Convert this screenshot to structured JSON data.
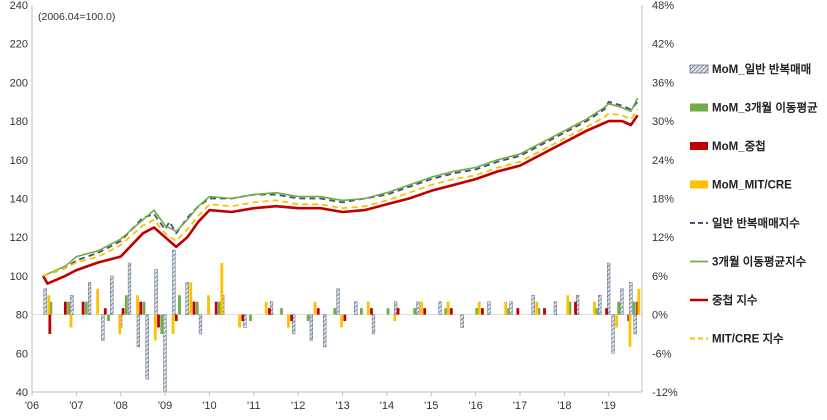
{
  "chart_data": {
    "type": "line",
    "subtype": "combo line + monthly change bars",
    "title": "",
    "note": "(2006.04=100.0)",
    "xlabel": "",
    "ylabel": "",
    "y_left": {
      "ticks": [
        40,
        60,
        80,
        100,
        120,
        140,
        160,
        180,
        200,
        220,
        240
      ],
      "ylim": [
        40,
        240
      ]
    },
    "y_right": {
      "ticks": [
        "-12%",
        "-6%",
        "0%",
        "6%",
        "12%",
        "18%",
        "24%",
        "30%",
        "36%",
        "42%",
        "48%"
      ],
      "ylim": [
        -12,
        48
      ]
    },
    "x_ticks": [
      {
        "label": "'06",
        "year": 2006
      },
      {
        "label": "'07",
        "year": 2007
      },
      {
        "label": "'08",
        "year": 2008
      },
      {
        "label": "'09",
        "year": 2009
      },
      {
        "label": "'10",
        "year": 2010
      },
      {
        "label": "'11",
        "year": 2011
      },
      {
        "label": "'12",
        "year": 2012
      },
      {
        "label": "'13",
        "year": 2013
      },
      {
        "label": "'14",
        "year": 2014
      },
      {
        "label": "'15",
        "year": 2015
      },
      {
        "label": "'16",
        "year": 2016
      },
      {
        "label": "'17",
        "year": 2017
      },
      {
        "label": "'18",
        "year": 2018
      },
      {
        "label": "'19",
        "year": 2019
      }
    ],
    "x_range": [
      2006.0,
      2019.75
    ],
    "legend_position": "right",
    "legend": [
      {
        "label": "MoM_일반 반복매매",
        "kind": "bar-hatched",
        "color": "#8497b0"
      },
      {
        "label": "MoM_3개월 이동평균",
        "kind": "bar",
        "color": "#70ad47"
      },
      {
        "label": "MoM_중첩",
        "kind": "bar",
        "color": "#c00000"
      },
      {
        "label": "MoM_MIT/CRE",
        "kind": "bar",
        "color": "#ffc000"
      },
      {
        "label": "일반 반복매매지수",
        "kind": "line-dash",
        "color": "#44546a"
      },
      {
        "label": "3개월 이동평균지수",
        "kind": "line",
        "color": "#70ad47"
      },
      {
        "label": "중첩 지수",
        "kind": "line-thick",
        "color": "#c00000"
      },
      {
        "label": "MIT/CRE 지수",
        "kind": "line-dash",
        "color": "#ffc000"
      }
    ],
    "series": [
      {
        "name": "일반 반복매매지수",
        "role": "index",
        "points": [
          [
            2006.25,
            100
          ],
          [
            2006.75,
            104
          ],
          [
            2007.0,
            108
          ],
          [
            2007.5,
            112
          ],
          [
            2008.0,
            118
          ],
          [
            2008.5,
            130
          ],
          [
            2008.75,
            132
          ],
          [
            2009.0,
            124
          ],
          [
            2009.1,
            128
          ],
          [
            2009.25,
            122
          ],
          [
            2009.5,
            130
          ],
          [
            2009.75,
            136
          ],
          [
            2010.0,
            140
          ],
          [
            2010.5,
            140
          ],
          [
            2011.0,
            142
          ],
          [
            2011.5,
            142
          ],
          [
            2012.0,
            140
          ],
          [
            2012.5,
            140
          ],
          [
            2013.0,
            138
          ],
          [
            2013.5,
            140
          ],
          [
            2014.0,
            142
          ],
          [
            2014.5,
            146
          ],
          [
            2015.0,
            150
          ],
          [
            2015.5,
            153
          ],
          [
            2016.0,
            155
          ],
          [
            2016.5,
            159
          ],
          [
            2017.0,
            162
          ],
          [
            2017.5,
            168
          ],
          [
            2018.0,
            174
          ],
          [
            2018.5,
            180
          ],
          [
            2018.9,
            186
          ],
          [
            2019.0,
            190
          ],
          [
            2019.3,
            188
          ],
          [
            2019.5,
            186
          ],
          [
            2019.65,
            190
          ]
        ]
      },
      {
        "name": "3개월 이동평균지수",
        "role": "index",
        "points": [
          [
            2006.25,
            100
          ],
          [
            2006.75,
            105
          ],
          [
            2007.0,
            110
          ],
          [
            2007.5,
            113
          ],
          [
            2008.0,
            119
          ],
          [
            2008.5,
            129
          ],
          [
            2008.75,
            134
          ],
          [
            2009.0,
            126
          ],
          [
            2009.25,
            123
          ],
          [
            2009.5,
            129
          ],
          [
            2009.75,
            136
          ],
          [
            2010.0,
            141
          ],
          [
            2010.5,
            140
          ],
          [
            2011.0,
            142
          ],
          [
            2011.5,
            143
          ],
          [
            2012.0,
            141
          ],
          [
            2012.5,
            141
          ],
          [
            2013.0,
            139
          ],
          [
            2013.5,
            140
          ],
          [
            2014.0,
            143
          ],
          [
            2014.5,
            147
          ],
          [
            2015.0,
            151
          ],
          [
            2015.5,
            154
          ],
          [
            2016.0,
            156
          ],
          [
            2016.5,
            160
          ],
          [
            2017.0,
            163
          ],
          [
            2017.5,
            169
          ],
          [
            2018.0,
            175
          ],
          [
            2018.5,
            181
          ],
          [
            2018.9,
            187
          ],
          [
            2019.0,
            189
          ],
          [
            2019.3,
            187
          ],
          [
            2019.5,
            185
          ],
          [
            2019.65,
            192
          ]
        ]
      },
      {
        "name": "중첩 지수",
        "role": "index",
        "points": [
          [
            2006.25,
            100
          ],
          [
            2006.35,
            96
          ],
          [
            2006.75,
            100
          ],
          [
            2007.0,
            103
          ],
          [
            2007.5,
            107
          ],
          [
            2008.0,
            110
          ],
          [
            2008.5,
            122
          ],
          [
            2008.75,
            125
          ],
          [
            2009.0,
            120
          ],
          [
            2009.25,
            115
          ],
          [
            2009.5,
            120
          ],
          [
            2009.75,
            128
          ],
          [
            2010.0,
            134
          ],
          [
            2010.5,
            133
          ],
          [
            2011.0,
            135
          ],
          [
            2011.5,
            136
          ],
          [
            2012.0,
            135
          ],
          [
            2012.5,
            135
          ],
          [
            2013.0,
            133
          ],
          [
            2013.5,
            134
          ],
          [
            2014.0,
            137
          ],
          [
            2014.5,
            140
          ],
          [
            2015.0,
            144
          ],
          [
            2015.5,
            147
          ],
          [
            2016.0,
            150
          ],
          [
            2016.5,
            154
          ],
          [
            2017.0,
            157
          ],
          [
            2017.5,
            163
          ],
          [
            2018.0,
            169
          ],
          [
            2018.5,
            175
          ],
          [
            2018.9,
            179
          ],
          [
            2019.0,
            180
          ],
          [
            2019.3,
            180
          ],
          [
            2019.5,
            178
          ],
          [
            2019.65,
            183
          ]
        ]
      },
      {
        "name": "MIT/CRE 지수",
        "role": "index",
        "points": [
          [
            2006.25,
            100
          ],
          [
            2006.75,
            104
          ],
          [
            2007.0,
            107
          ],
          [
            2007.5,
            110
          ],
          [
            2008.0,
            116
          ],
          [
            2008.5,
            126
          ],
          [
            2008.75,
            129
          ],
          [
            2009.0,
            122
          ],
          [
            2009.25,
            118
          ],
          [
            2009.5,
            124
          ],
          [
            2009.75,
            131
          ],
          [
            2010.0,
            137
          ],
          [
            2010.5,
            136
          ],
          [
            2011.0,
            138
          ],
          [
            2011.5,
            139
          ],
          [
            2012.0,
            137
          ],
          [
            2012.5,
            137
          ],
          [
            2013.0,
            135
          ],
          [
            2013.5,
            136
          ],
          [
            2014.0,
            139
          ],
          [
            2014.5,
            143
          ],
          [
            2015.0,
            147
          ],
          [
            2015.5,
            150
          ],
          [
            2016.0,
            152
          ],
          [
            2016.5,
            156
          ],
          [
            2017.0,
            159
          ],
          [
            2017.5,
            165
          ],
          [
            2018.0,
            171
          ],
          [
            2018.5,
            177
          ],
          [
            2018.9,
            182
          ],
          [
            2019.0,
            184
          ],
          [
            2019.3,
            183
          ],
          [
            2019.5,
            181
          ],
          [
            2019.65,
            186
          ]
        ]
      },
      {
        "name": "MoM_일반 반복매매",
        "role": "mom_percent",
        "values_note": "monthly % change, right axis",
        "points": [
          [
            2006.3,
            4
          ],
          [
            2006.9,
            3
          ],
          [
            2007.3,
            5
          ],
          [
            2007.6,
            -4
          ],
          [
            2007.8,
            6
          ],
          [
            2008.0,
            -2
          ],
          [
            2008.2,
            8
          ],
          [
            2008.4,
            -5
          ],
          [
            2008.6,
            -10
          ],
          [
            2008.8,
            7
          ],
          [
            2009.0,
            -12
          ],
          [
            2009.2,
            10
          ],
          [
            2009.5,
            5
          ],
          [
            2009.8,
            -3
          ],
          [
            2010.3,
            3
          ],
          [
            2010.8,
            -2
          ],
          [
            2011.4,
            2
          ],
          [
            2011.9,
            -3
          ],
          [
            2012.3,
            -4
          ],
          [
            2012.6,
            -5
          ],
          [
            2012.9,
            4
          ],
          [
            2013.3,
            2
          ],
          [
            2013.7,
            -3
          ],
          [
            2014.2,
            2
          ],
          [
            2014.7,
            2
          ],
          [
            2015.2,
            2
          ],
          [
            2015.7,
            -2
          ],
          [
            2016.3,
            2
          ],
          [
            2016.8,
            2
          ],
          [
            2017.3,
            3
          ],
          [
            2017.8,
            2
          ],
          [
            2018.3,
            3
          ],
          [
            2018.8,
            3
          ],
          [
            2019.0,
            8
          ],
          [
            2019.1,
            -6
          ],
          [
            2019.3,
            4
          ],
          [
            2019.5,
            5
          ],
          [
            2019.6,
            -3
          ]
        ]
      },
      {
        "name": "MoM_3개월 이동평균",
        "role": "mom_percent",
        "points": [
          [
            2006.4,
            2
          ],
          [
            2006.8,
            2
          ],
          [
            2007.2,
            2
          ],
          [
            2007.7,
            -1
          ],
          [
            2008.1,
            3
          ],
          [
            2008.5,
            2
          ],
          [
            2008.9,
            -3
          ],
          [
            2009.3,
            3
          ],
          [
            2009.7,
            2
          ],
          [
            2010.2,
            2
          ],
          [
            2010.9,
            -1
          ],
          [
            2011.6,
            1
          ],
          [
            2012.2,
            -1
          ],
          [
            2012.8,
            1
          ],
          [
            2013.4,
            1
          ],
          [
            2014.0,
            1
          ],
          [
            2014.6,
            1
          ],
          [
            2015.3,
            1
          ],
          [
            2016.0,
            1
          ],
          [
            2016.7,
            1
          ],
          [
            2017.4,
            1
          ],
          [
            2018.1,
            2
          ],
          [
            2018.7,
            1
          ],
          [
            2019.2,
            2
          ],
          [
            2019.55,
            2
          ]
        ]
      },
      {
        "name": "MoM_중첩",
        "role": "mom_percent",
        "points": [
          [
            2006.35,
            -3
          ],
          [
            2006.7,
            2
          ],
          [
            2007.1,
            2
          ],
          [
            2007.6,
            1
          ],
          [
            2008.0,
            1
          ],
          [
            2008.4,
            2
          ],
          [
            2008.8,
            -2
          ],
          [
            2009.2,
            -1
          ],
          [
            2009.6,
            2
          ],
          [
            2010.1,
            2
          ],
          [
            2010.7,
            -1
          ],
          [
            2011.3,
            1
          ],
          [
            2011.8,
            -1
          ],
          [
            2012.4,
            1
          ],
          [
            2013.0,
            -1
          ],
          [
            2013.6,
            1
          ],
          [
            2014.2,
            1
          ],
          [
            2014.8,
            1
          ],
          [
            2015.4,
            1
          ],
          [
            2016.1,
            1
          ],
          [
            2016.9,
            1
          ],
          [
            2017.5,
            1
          ],
          [
            2018.2,
            2
          ],
          [
            2018.9,
            1
          ],
          [
            2019.4,
            -1
          ],
          [
            2019.6,
            2
          ]
        ]
      },
      {
        "name": "MoM_MIT/CRE",
        "role": "mom_percent",
        "points": [
          [
            2006.3,
            3
          ],
          [
            2006.8,
            -2
          ],
          [
            2007.4,
            4
          ],
          [
            2007.9,
            -3
          ],
          [
            2008.3,
            3
          ],
          [
            2008.7,
            -4
          ],
          [
            2009.1,
            -3
          ],
          [
            2009.5,
            5
          ],
          [
            2009.9,
            3
          ],
          [
            2010.2,
            8
          ],
          [
            2010.6,
            -2
          ],
          [
            2011.2,
            2
          ],
          [
            2011.7,
            -2
          ],
          [
            2012.3,
            2
          ],
          [
            2012.9,
            -2
          ],
          [
            2013.5,
            2
          ],
          [
            2014.1,
            -1
          ],
          [
            2014.7,
            2
          ],
          [
            2015.3,
            2
          ],
          [
            2016.0,
            2
          ],
          [
            2016.6,
            2
          ],
          [
            2017.3,
            2
          ],
          [
            2018.0,
            3
          ],
          [
            2018.6,
            2
          ],
          [
            2019.1,
            -2
          ],
          [
            2019.4,
            -5
          ],
          [
            2019.6,
            4
          ]
        ]
      }
    ]
  }
}
